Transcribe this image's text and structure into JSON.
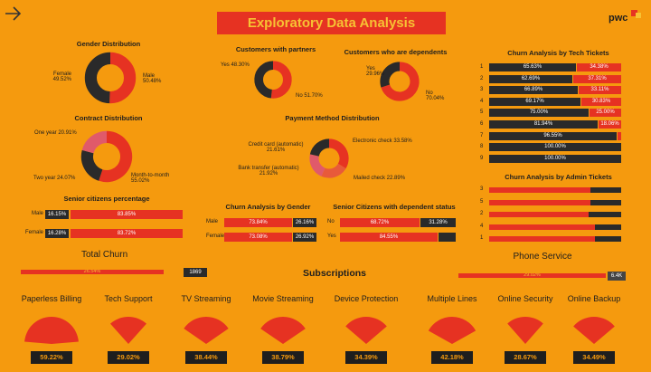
{
  "header": {
    "title": "Exploratory Data Analysis",
    "brand": "pwc"
  },
  "gender": {
    "title": "Gender Distribution",
    "female": "Female\n49.52%",
    "female_l1": "Female",
    "female_l2": "49.52%",
    "male_l1": "Male",
    "male_l2": "50.48%",
    "female_pct": 49.52
  },
  "partners": {
    "title": "Customers with partners",
    "yes": "Yes 48.30%",
    "no": "No 51.70%",
    "yes_pct": 48.3
  },
  "dependents": {
    "title": "Customers who are dependents",
    "yes_l1": "Yes",
    "yes_l2": "29.96%",
    "no_l1": "No",
    "no_l2": "70.04%",
    "yes_pct": 29.96
  },
  "contract": {
    "title": "Contract Distribution",
    "one_year": "One year 20.91%",
    "two_year": "Two year 24.07%",
    "m2m_l1": "Month-to-month",
    "m2m_l2": "55.02%",
    "slices": [
      55.02,
      24.07,
      20.91
    ]
  },
  "payment": {
    "title": "Payment Method Distribution",
    "credit_l1": "Credit card (automatic)",
    "credit_l2": "21.61%",
    "bank_l1": "Bank transfer (automatic)",
    "bank_l2": "21.92%",
    "echeck": "Electronic check 33.58%",
    "mailed": "Mailed check 22.89%",
    "slices": [
      33.58,
      22.89,
      21.92,
      21.61
    ]
  },
  "senior": {
    "title": "Senior citizens percentage",
    "rows": [
      {
        "label": "Male",
        "a": "16.15%",
        "b": "83.85%",
        "a_pct": 16.15
      },
      {
        "label": "Female",
        "a": "16.28%",
        "b": "83.72%",
        "a_pct": 16.28
      }
    ]
  },
  "churn_gender": {
    "title": "Churn Analysis by Gender",
    "rows": [
      {
        "label": "Male",
        "a": "73.84%",
        "b": "26.16%",
        "a_pct": 73.84
      },
      {
        "label": "Female",
        "a": "73.08%",
        "b": "26.92%",
        "a_pct": 73.08
      }
    ]
  },
  "senior_dep": {
    "title": "Senior Citizens with dependent status",
    "rows": [
      {
        "label": "No",
        "a": "68.72%",
        "b": "31.28%",
        "a_pct": 68.72
      },
      {
        "label": "Yes",
        "a": "84.55%",
        "b": "",
        "a_pct": 84.55
      }
    ]
  },
  "tech_tickets": {
    "title": "Churn Analysis by Tech Tickets",
    "rows": [
      {
        "k": "1",
        "a": "65.63%",
        "b": "34.38%",
        "a_pct": 65.63
      },
      {
        "k": "2",
        "a": "62.69%",
        "b": "37.31%",
        "a_pct": 62.69
      },
      {
        "k": "3",
        "a": "66.89%",
        "b": "33.11%",
        "a_pct": 66.89
      },
      {
        "k": "4",
        "a": "69.17%",
        "b": "30.83%",
        "a_pct": 69.17
      },
      {
        "k": "5",
        "a": "75.00%",
        "b": "25.00%",
        "a_pct": 75.0
      },
      {
        "k": "6",
        "a": "81.94%",
        "b": "18.06%",
        "a_pct": 81.94
      },
      {
        "k": "7",
        "a": "96.55%",
        "b": "",
        "a_pct": 96.55
      },
      {
        "k": "8",
        "a": "100.00%",
        "b": "",
        "a_pct": 100
      },
      {
        "k": "9",
        "a": "100.00%",
        "b": "",
        "a_pct": 100
      }
    ]
  },
  "admin_tickets": {
    "title": "Churn Analysis by Admin Tickets",
    "rows": [
      {
        "k": "3",
        "a_pct": 77
      },
      {
        "k": "5",
        "a_pct": 77
      },
      {
        "k": "2",
        "a_pct": 75
      },
      {
        "k": "4",
        "a_pct": 80
      },
      {
        "k": "1",
        "a_pct": 80
      }
    ]
  },
  "total_churn": {
    "title": "Total Churn",
    "pct": "26.54%",
    "count": "1869",
    "fill_pct": 88
  },
  "phone": {
    "title": "Phone Service",
    "pct": "29.02%",
    "count": "6.4K",
    "fill_pct": 93
  },
  "subscriptions": {
    "title": "Subscriptions",
    "items": [
      {
        "name": "Paperless Billing",
        "value": "59.22%",
        "pct": 59.22
      },
      {
        "name": "Tech Support",
        "value": "29.02%",
        "pct": 29.02
      },
      {
        "name": "TV Streaming",
        "value": "38.44%",
        "pct": 38.44
      },
      {
        "name": "Movie Streaming",
        "value": "38.79%",
        "pct": 38.79
      },
      {
        "name": "Device Protection",
        "value": "34.39%",
        "pct": 34.39
      },
      {
        "name": "Multiple Lines",
        "value": "42.18%",
        "pct": 42.18
      },
      {
        "name": "Online Security",
        "value": "28.67%",
        "pct": 28.67
      },
      {
        "name": "Online Backup",
        "value": "34.49%",
        "pct": 34.49
      }
    ]
  },
  "colors": {
    "bg": "#f59a0e",
    "red": "#e63222",
    "dark": "#2a2a2a",
    "pink": "#e05a6a",
    "yellow": "#f7c233"
  }
}
